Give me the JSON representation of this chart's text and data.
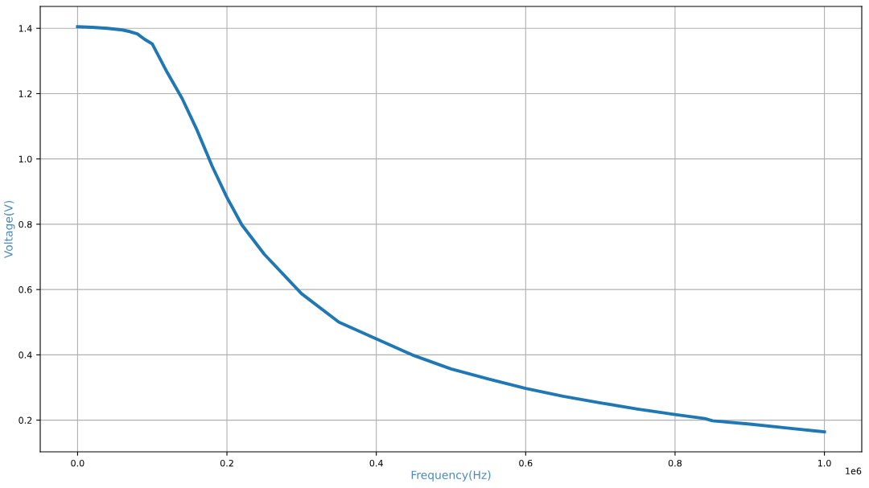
{
  "chart_data": {
    "type": "line",
    "xlabel": "Frequency(Hz)",
    "ylabel": "Voltage(V)",
    "x": [
      0,
      0.02,
      0.04,
      0.06,
      0.07,
      0.08,
      0.09,
      0.1,
      0.12,
      0.14,
      0.16,
      0.18,
      0.2,
      0.22,
      0.25,
      0.3,
      0.35,
      0.4,
      0.45,
      0.5,
      0.55,
      0.6,
      0.65,
      0.7,
      0.75,
      0.8,
      0.84,
      0.85,
      0.9,
      0.95,
      1.0
    ],
    "series": [
      {
        "color": "#1f77b4",
        "values": [
          1.405,
          1.403,
          1.4,
          1.395,
          1.39,
          1.383,
          1.366,
          1.352,
          1.265,
          1.185,
          1.088,
          0.979,
          0.882,
          0.798,
          0.708,
          0.587,
          0.5,
          0.449,
          0.398,
          0.357,
          0.326,
          0.297,
          0.273,
          0.253,
          0.234,
          0.217,
          0.205,
          0.198,
          0.188,
          0.176,
          0.164
        ]
      }
    ],
    "xlim": [
      -0.05,
      1.05
    ],
    "ylim": [
      0.103,
      1.467
    ],
    "xticks": [
      {
        "value": 0,
        "label": "0.0"
      },
      0.2,
      0.4,
      0.6,
      0.8,
      {
        "value": 1,
        "label": "1.0"
      }
    ],
    "yticks": [
      0.2,
      0.4,
      0.6,
      0.8,
      {
        "value": 1,
        "label": "1.0"
      },
      1.2,
      1.4
    ],
    "annotations": [
      "1e6"
    ],
    "grid": true,
    "marker": "none",
    "line_style": "solid"
  }
}
